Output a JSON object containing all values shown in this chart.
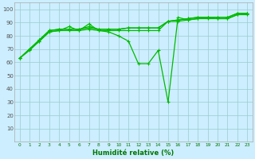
{
  "xlabel": "Humidité relative (%)",
  "bg_color": "#cceeff",
  "grid_color": "#99cccc",
  "line_color": "#00bb00",
  "xlim": [
    -0.5,
    23.5
  ],
  "ylim": [
    0,
    105
  ],
  "yticks": [
    10,
    20,
    30,
    40,
    50,
    60,
    70,
    80,
    90,
    100
  ],
  "xticks": [
    0,
    1,
    2,
    3,
    4,
    5,
    6,
    7,
    8,
    9,
    10,
    11,
    12,
    13,
    14,
    15,
    16,
    17,
    18,
    19,
    20,
    21,
    22,
    23
  ],
  "series0": [
    63,
    69,
    76,
    83,
    84,
    87,
    84,
    89,
    84,
    83,
    80,
    76,
    59,
    59,
    69,
    30,
    94,
    92,
    93,
    94,
    93,
    93,
    96,
    96
  ],
  "series1": [
    63,
    70,
    76,
    83,
    84,
    84,
    84,
    85,
    84,
    84,
    84,
    84,
    84,
    84,
    84,
    91,
    91,
    92,
    93,
    93,
    93,
    93,
    96,
    97
  ],
  "series2": [
    63,
    70,
    77,
    84,
    85,
    85,
    85,
    86,
    85,
    85,
    85,
    86,
    86,
    86,
    86,
    91,
    92,
    93,
    94,
    94,
    94,
    94,
    97,
    97
  ],
  "series3": [
    63,
    70,
    77,
    84,
    85,
    85,
    85,
    87,
    85,
    85,
    85,
    86,
    86,
    86,
    86,
    91,
    92,
    93,
    94,
    94,
    94,
    94,
    97,
    97
  ],
  "xlabel_color": "#007700",
  "xlabel_fontsize": 6,
  "xlabel_fontweight": "bold",
  "tick_fontsize_x": 4.2,
  "tick_fontsize_y": 5,
  "tick_color_x": "#007700",
  "tick_color_y": "#555555",
  "linewidth": 0.9,
  "markersize": 3.5,
  "markeredgewidth": 0.8
}
